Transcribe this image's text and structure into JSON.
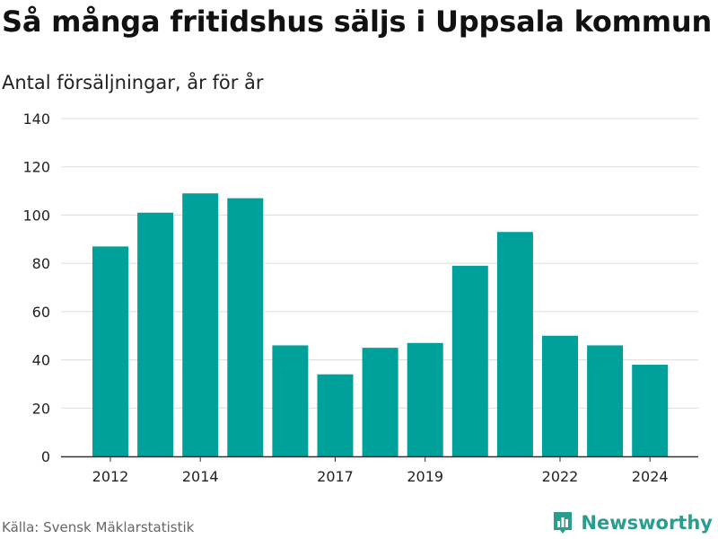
{
  "title": "Så många fritidshus säljs i Uppsala kommun",
  "subtitle": "Antal försäljningar, år för år",
  "source": "Källa: Svensk Mäklarstatistik",
  "brand": {
    "name": "Newsworthy",
    "icon": "newsworthy-logo-icon",
    "color": "#2a9d8f"
  },
  "chart_data": {
    "type": "bar",
    "title": "Så många fritidshus säljs i Uppsala kommun",
    "subtitle": "Antal försäljningar, år för år",
    "categories": [
      "2012",
      "2013",
      "2014",
      "2015",
      "2016",
      "2017",
      "2018",
      "2019",
      "2020",
      "2021",
      "2022",
      "2023",
      "2024"
    ],
    "values": [
      87,
      101,
      109,
      107,
      46,
      34,
      45,
      47,
      79,
      93,
      50,
      46,
      38
    ],
    "x_tick_labels": [
      "2012",
      "2014",
      "2017",
      "2019",
      "2022",
      "2024"
    ],
    "y_ticks": [
      0,
      20,
      40,
      60,
      80,
      100,
      120,
      140
    ],
    "ylim": [
      0,
      140
    ],
    "grid": true,
    "bar_color": "#00a19a",
    "xlabel": "",
    "ylabel": ""
  }
}
